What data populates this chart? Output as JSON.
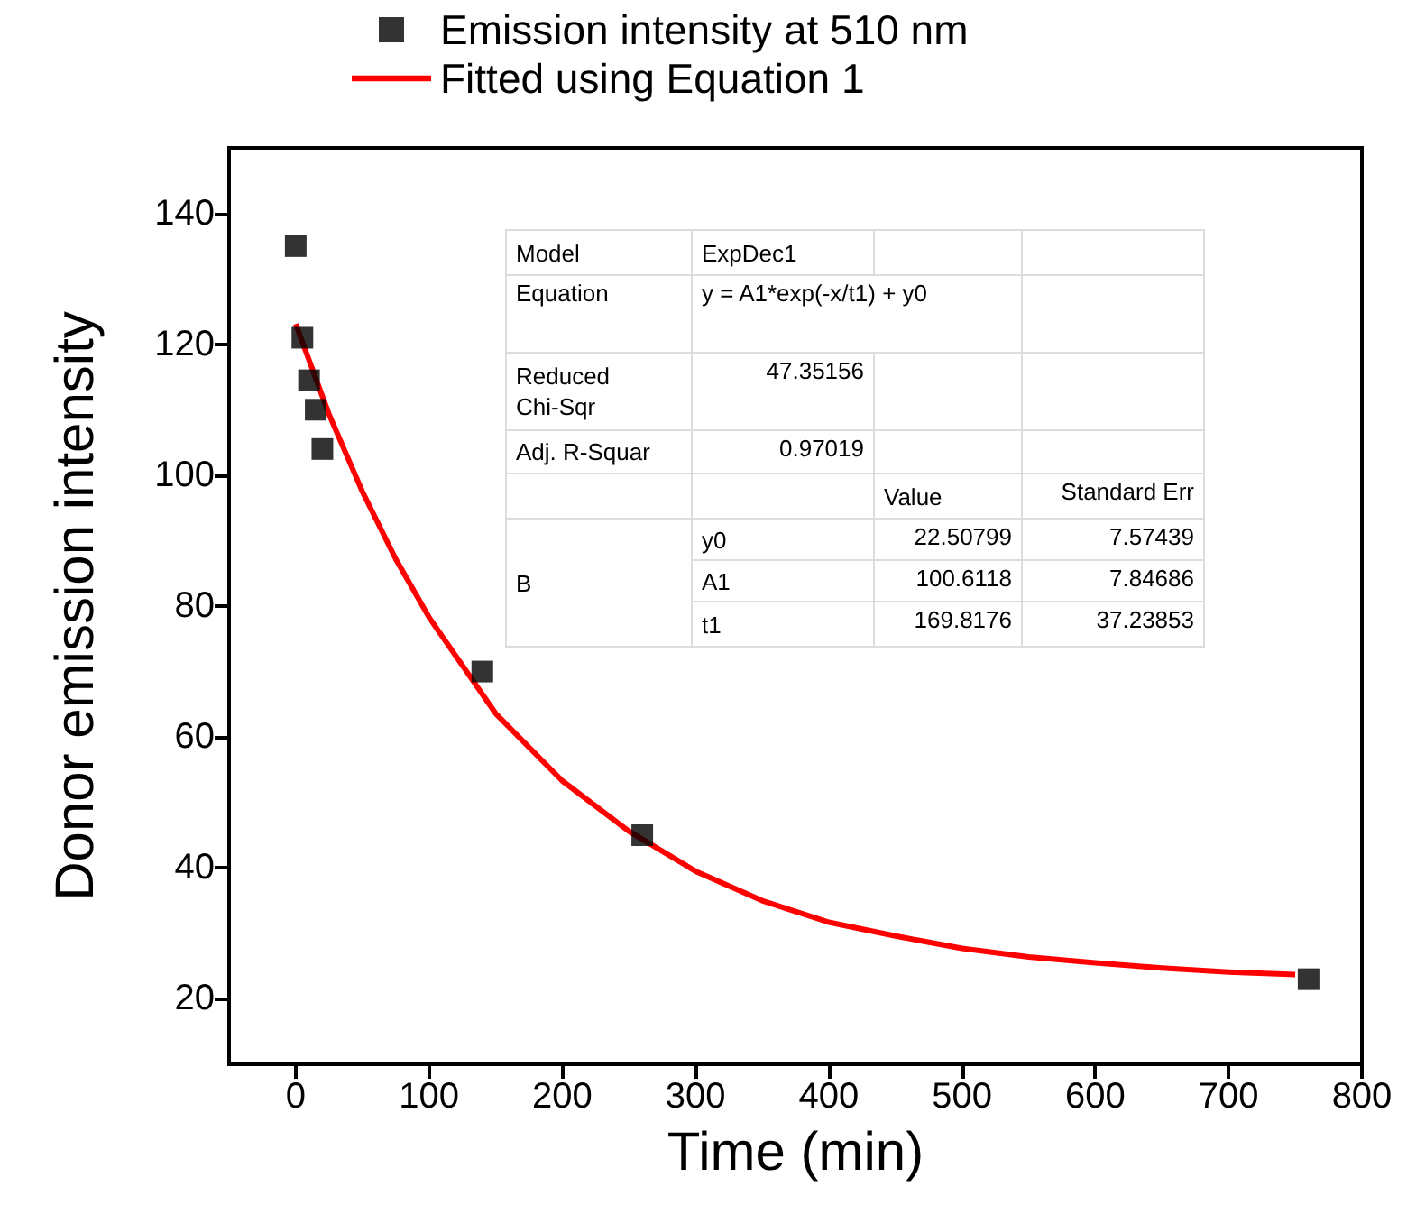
{
  "chart_data": {
    "type": "scatter",
    "xlabel": "Time (min)",
    "ylabel": "Donor emission intensity",
    "xlim": [
      -50,
      800
    ],
    "xticks": [
      0,
      100,
      200,
      300,
      400,
      500,
      600,
      700,
      800
    ],
    "ylim": [
      10,
      150
    ],
    "yticks": [
      20,
      40,
      60,
      80,
      100,
      120,
      140
    ],
    "legend": "top",
    "grid": false,
    "marker": "square",
    "series": [
      {
        "name": "Emission intensity at 510 nm",
        "color": "#000000",
        "x": [
          0,
          5,
          10,
          15,
          20,
          140,
          260,
          760
        ],
        "values": [
          135,
          121,
          114.5,
          110,
          104,
          70,
          45,
          23
        ]
      },
      {
        "name": "Fitted using Equation 1",
        "type": "line",
        "color": "#ff0000",
        "marker": "none",
        "x": [
          0,
          25,
          50,
          75,
          100,
          150,
          200,
          250,
          300,
          350,
          400,
          450,
          500,
          550,
          600,
          650,
          700,
          750
        ],
        "values": [
          123.1,
          109.3,
          97.5,
          87.2,
          78.3,
          63.6,
          53.3,
          45.6,
          39.5,
          35.0,
          31.7,
          29.6,
          27.7,
          26.4,
          25.5,
          24.7,
          24.1,
          23.7
        ]
      }
    ],
    "annotations": [
      "Model",
      "ExpDec1",
      "Equation",
      "y = A1*exp(-x/t1) + y0",
      "Reduced\nChi-Sqr",
      "47.35156",
      "Adj. R-Squar",
      "0.97019",
      "Value",
      "Standard Err",
      "B",
      "y0",
      "22.50799",
      "7.57439",
      "A1",
      "100.6118",
      "7.84686",
      "t1",
      "169.8176",
      "37.23853"
    ]
  }
}
